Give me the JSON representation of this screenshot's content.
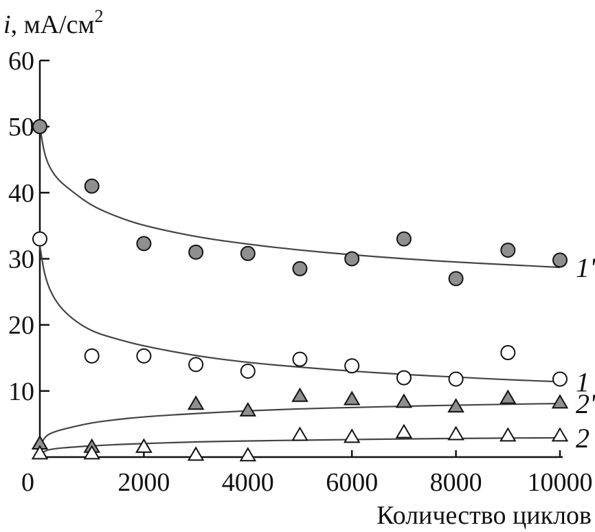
{
  "chart_data": {
    "type": "scatter",
    "title": "",
    "ylabel": {
      "var": "i",
      "rest": ", мА/см",
      "sup": "2"
    },
    "xlabel": "Количество циклов",
    "xlim": [
      0,
      10000
    ],
    "ylim": [
      0,
      60
    ],
    "x_ticks": [
      0,
      2000,
      4000,
      6000,
      8000,
      10000
    ],
    "y_ticks": [
      10,
      20,
      30,
      40,
      50,
      60
    ],
    "series": [
      {
        "name": "1'",
        "marker": "circle",
        "fill": "#8f8f8f",
        "points": [
          [
            0,
            50
          ],
          [
            1000,
            41
          ],
          [
            2000,
            32.3
          ],
          [
            3000,
            31
          ],
          [
            4000,
            30.8
          ],
          [
            5000,
            28.5
          ],
          [
            6000,
            30
          ],
          [
            7000,
            33
          ],
          [
            8000,
            27
          ],
          [
            9000,
            31.3
          ],
          [
            10000,
            29.8
          ]
        ],
        "fit": [
          [
            0,
            50
          ],
          [
            100,
            45.2
          ],
          [
            300,
            42.3
          ],
          [
            600,
            40.3
          ],
          [
            1000,
            38
          ],
          [
            1500,
            36.3
          ],
          [
            2000,
            35
          ],
          [
            3000,
            33.3
          ],
          [
            4000,
            32.2
          ],
          [
            5000,
            31.3
          ],
          [
            6000,
            30.6
          ],
          [
            7000,
            30
          ],
          [
            8000,
            29.5
          ],
          [
            9000,
            29.1
          ],
          [
            10000,
            28.7
          ]
        ]
      },
      {
        "name": "1",
        "marker": "circle",
        "fill": "#ffffff",
        "points": [
          [
            0,
            33
          ],
          [
            1000,
            15.3
          ],
          [
            2000,
            15.3
          ],
          [
            3000,
            14
          ],
          [
            4000,
            13
          ],
          [
            5000,
            14.8
          ],
          [
            6000,
            13.8
          ],
          [
            7000,
            12
          ],
          [
            8000,
            11.8
          ],
          [
            9000,
            15.8
          ],
          [
            10000,
            11.8
          ]
        ],
        "fit": [
          [
            0,
            32
          ],
          [
            100,
            27
          ],
          [
            300,
            23.5
          ],
          [
            600,
            21
          ],
          [
            1000,
            19
          ],
          [
            1500,
            17.8
          ],
          [
            2000,
            16.8
          ],
          [
            3000,
            15.3
          ],
          [
            4000,
            14.3
          ],
          [
            5000,
            13.6
          ],
          [
            6000,
            13
          ],
          [
            7000,
            12.5
          ],
          [
            8000,
            12.1
          ],
          [
            9000,
            11.7
          ],
          [
            10000,
            11.4
          ]
        ]
      },
      {
        "name": "2'",
        "marker": "triangle",
        "fill": "#8f8f8f",
        "points": [
          [
            0,
            2
          ],
          [
            1000,
            1.5
          ],
          [
            2000,
            1.5
          ],
          [
            3000,
            8
          ],
          [
            4000,
            7
          ],
          [
            5000,
            9.2
          ],
          [
            6000,
            8.7
          ],
          [
            7000,
            8.3
          ],
          [
            8000,
            7.6
          ],
          [
            9000,
            8.9
          ],
          [
            10000,
            8.2
          ]
        ],
        "fit": [
          [
            0,
            1.5
          ],
          [
            100,
            3.2
          ],
          [
            300,
            3.9
          ],
          [
            600,
            4.5
          ],
          [
            1000,
            5.2
          ],
          [
            1500,
            5.7
          ],
          [
            2000,
            6.1
          ],
          [
            3000,
            6.6
          ],
          [
            4000,
            7
          ],
          [
            5000,
            7.3
          ],
          [
            6000,
            7.5
          ],
          [
            7000,
            7.7
          ],
          [
            8000,
            7.85
          ],
          [
            9000,
            8
          ],
          [
            10000,
            8.1
          ]
        ]
      },
      {
        "name": "2",
        "marker": "triangle",
        "fill": "#ffffff",
        "points": [
          [
            0,
            0.5
          ],
          [
            1000,
            0.5
          ],
          [
            2000,
            1.5
          ],
          [
            3000,
            0.3
          ],
          [
            4000,
            0.2
          ],
          [
            5000,
            3.3
          ],
          [
            6000,
            3
          ],
          [
            7000,
            3.7
          ],
          [
            8000,
            3.4
          ],
          [
            9000,
            3.2
          ],
          [
            10000,
            3.2
          ]
        ],
        "fit": [
          [
            0,
            0.3
          ],
          [
            100,
            1
          ],
          [
            300,
            1.3
          ],
          [
            600,
            1.5
          ],
          [
            1000,
            1.7
          ],
          [
            1500,
            1.9
          ],
          [
            2000,
            2.05
          ],
          [
            3000,
            2.3
          ],
          [
            4000,
            2.45
          ],
          [
            5000,
            2.55
          ],
          [
            6000,
            2.65
          ],
          [
            7000,
            2.75
          ],
          [
            8000,
            2.82
          ],
          [
            9000,
            2.88
          ],
          [
            10000,
            2.92
          ]
        ]
      }
    ]
  }
}
